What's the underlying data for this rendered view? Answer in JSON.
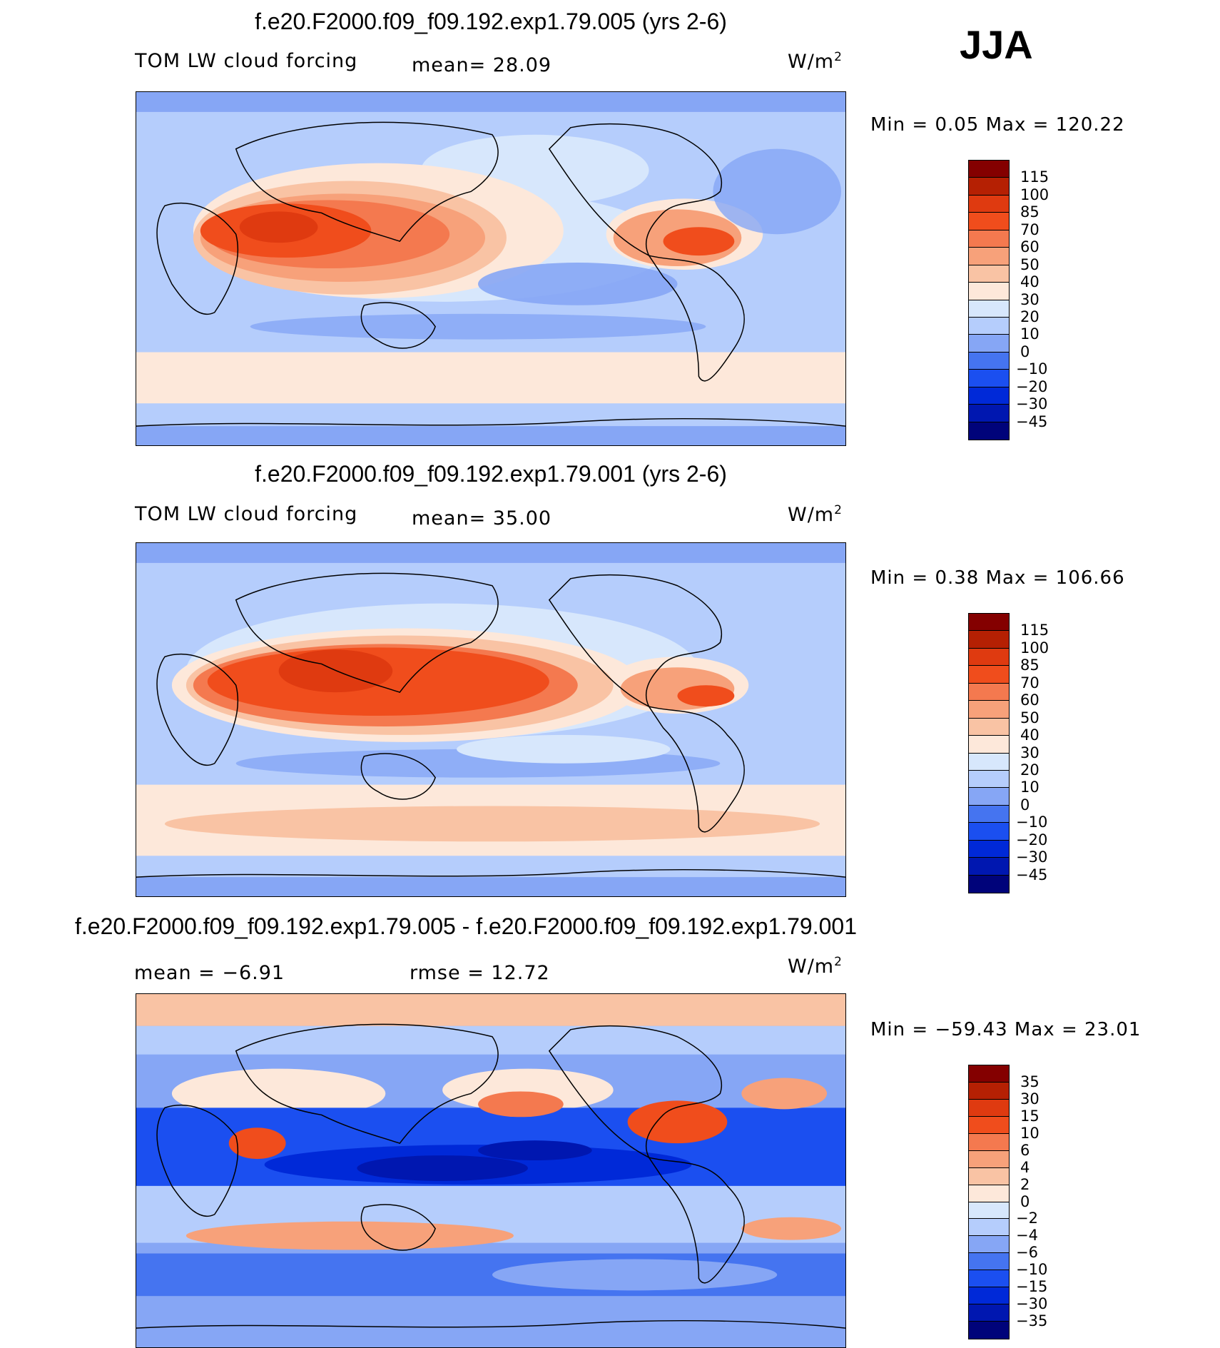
{
  "season": "JJA",
  "colors": {
    "abs_scale": [
      "#00037a",
      "#0017b0",
      "#0029d8",
      "#1b4ff0",
      "#4574f0",
      "#86a6f5",
      "#b5cdfc",
      "#d7e7fc",
      "#fde8da",
      "#f9c3a4",
      "#f7a17a",
      "#f4794f",
      "#f04d1c",
      "#df3a10",
      "#b52003",
      "#840000"
    ],
    "diff_scale": [
      "#00037a",
      "#0017b0",
      "#0029d8",
      "#1b4ff0",
      "#4574f0",
      "#86a6f5",
      "#b5cdfc",
      "#d7e7fc",
      "#fde8da",
      "#f9c3a4",
      "#f7a17a",
      "#f4794f",
      "#f04d1c",
      "#df3a10",
      "#b52003",
      "#840000"
    ]
  },
  "panels": [
    {
      "title": "f.e20.F2000.f09_f09.192.exp1.79.005 (yrs 2-6)",
      "variable": "TOM LW cloud forcing",
      "stat1": "mean=   28.09",
      "stat2": "",
      "units": "W/m",
      "units_exp": "2",
      "minmax": "Min =    0.05 Max =  120.22",
      "ticks": [
        "115",
        "100",
        "85",
        "70",
        "60",
        "50",
        "40",
        "30",
        "20",
        "10",
        "0",
        "−10",
        "−20",
        "−30",
        "−45"
      ]
    },
    {
      "title": "f.e20.F2000.f09_f09.192.exp1.79.001 (yrs 2-6)",
      "variable": "TOM LW cloud forcing",
      "stat1": "mean=   35.00",
      "stat2": "",
      "units": "W/m",
      "units_exp": "2",
      "minmax": "Min =    0.38 Max =  106.66",
      "ticks": [
        "115",
        "100",
        "85",
        "70",
        "60",
        "50",
        "40",
        "30",
        "20",
        "10",
        "0",
        "−10",
        "−20",
        "−30",
        "−45"
      ]
    },
    {
      "title": "f.e20.F2000.f09_f09.192.exp1.79.005 - f.e20.F2000.f09_f09.192.exp1.79.001",
      "variable": "",
      "stat1": "mean =   −6.91",
      "stat2": "rmse =   12.72",
      "units": "W/m",
      "units_exp": "2",
      "minmax": "Min = −59.43 Max =   23.01",
      "ticks": [
        "35",
        "30",
        "15",
        "10",
        "6",
        "4",
        "2",
        "0",
        "−2",
        "−4",
        "−6",
        "−10",
        "−15",
        "−30",
        "−35"
      ]
    }
  ],
  "chart_data": [
    {
      "type": "heatmap",
      "title": "f.e20.F2000.f09_f09.192.exp1.79.005 (yrs 2-6)",
      "variable": "TOM LW cloud forcing",
      "units": "W/m2",
      "mean": 28.09,
      "min": 0.05,
      "max": 120.22,
      "levels": [
        -45,
        -30,
        -20,
        -10,
        0,
        10,
        20,
        30,
        40,
        50,
        60,
        70,
        85,
        100,
        115
      ],
      "projection": "cylindrical equidistant, centered on Pacific (0-360 longitude)"
    },
    {
      "type": "heatmap",
      "title": "f.e20.F2000.f09_f09.192.exp1.79.001 (yrs 2-6)",
      "variable": "TOM LW cloud forcing",
      "units": "W/m2",
      "mean": 35.0,
      "min": 0.38,
      "max": 106.66,
      "levels": [
        -45,
        -30,
        -20,
        -10,
        0,
        10,
        20,
        30,
        40,
        50,
        60,
        70,
        85,
        100,
        115
      ],
      "projection": "cylindrical equidistant, centered on Pacific (0-360 longitude)"
    },
    {
      "type": "heatmap",
      "title": "f.e20.F2000.f09_f09.192.exp1.79.005 - f.e20.F2000.f09_f09.192.exp1.79.001",
      "units": "W/m2",
      "mean": -6.91,
      "rmse": 12.72,
      "min": -59.43,
      "max": 23.01,
      "levels": [
        -35,
        -30,
        -15,
        -10,
        -6,
        -4,
        -2,
        0,
        2,
        4,
        6,
        10,
        15,
        30,
        35
      ],
      "projection": "cylindrical equidistant, centered on Pacific (0-360 longitude)"
    }
  ]
}
